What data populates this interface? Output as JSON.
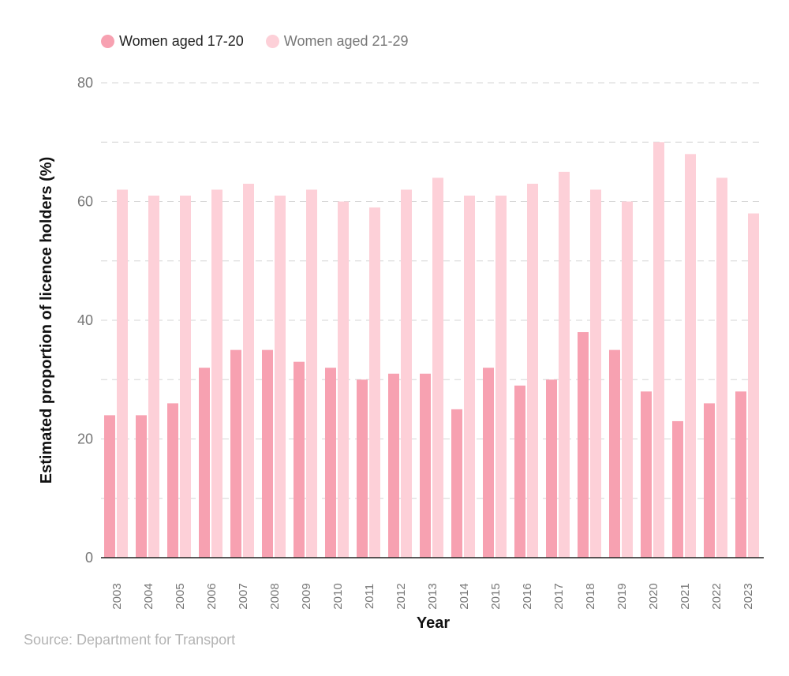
{
  "legend": {
    "items": [
      {
        "label": "Women aged 17-20",
        "color": "#f7a1b1",
        "text_color": "#222222"
      },
      {
        "label": "Women aged 21-29",
        "color": "#fdd0d8",
        "text_color": "#777777"
      }
    ]
  },
  "source": "Source: Department for Transport",
  "chart_data": {
    "type": "bar",
    "xlabel": "Year",
    "ylabel": "Estimated proportion of licence holders (%)",
    "ylim": [
      0,
      80
    ],
    "yticks": [
      0,
      20,
      40,
      60,
      80
    ],
    "grid": true,
    "legend_position": "top-left",
    "categories": [
      "2003",
      "2004",
      "2005",
      "2006",
      "2007",
      "2008",
      "2009",
      "2010",
      "2011",
      "2012",
      "2013",
      "2014",
      "2015",
      "2016",
      "2017",
      "2018",
      "2019",
      "2020",
      "2021",
      "2022",
      "2023"
    ],
    "series": [
      {
        "name": "Women aged 17-20",
        "color": "#f7a1b1",
        "values": [
          24,
          24,
          26,
          32,
          35,
          35,
          33,
          32,
          30,
          31,
          31,
          25,
          32,
          29,
          30,
          38,
          35,
          28,
          23,
          26,
          28
        ]
      },
      {
        "name": "Women aged 21-29",
        "color": "#fdd0d8",
        "values": [
          62,
          61,
          61,
          62,
          63,
          61,
          62,
          60,
          59,
          62,
          64,
          61,
          61,
          63,
          65,
          62,
          60,
          70,
          68,
          64,
          58
        ]
      }
    ]
  }
}
